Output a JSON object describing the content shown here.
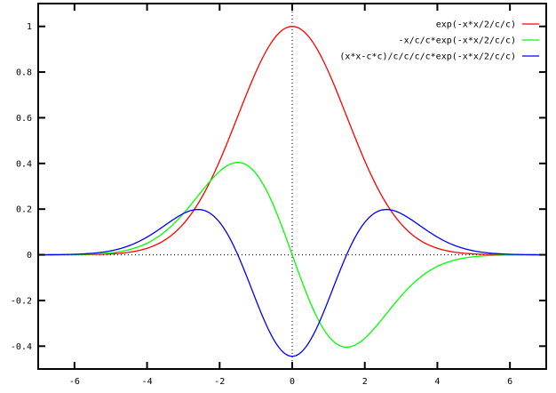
{
  "figure": {
    "background": "#ffffff",
    "border_color": "#000000",
    "text_color": "#000000",
    "zero_axis_color": "#000000"
  },
  "chart_data": {
    "type": "line",
    "title": "",
    "xlabel": "",
    "ylabel": "",
    "xlim": [
      -7,
      7
    ],
    "ylim": [
      -0.5,
      1.1
    ],
    "x_ticks": [
      -6,
      -4,
      -2,
      0,
      2,
      4,
      6
    ],
    "x_tick_labels": [
      "-6",
      "-4",
      "-2",
      "0",
      "2",
      "4",
      "6"
    ],
    "y_ticks": [
      1,
      0.8,
      0.6,
      0.4,
      0.2,
      0,
      -0.2,
      -0.4
    ],
    "y_tick_labels": [
      "1",
      "0.8",
      "0.6",
      "0.4",
      "0.2",
      "0",
      "-0.2",
      "-0.4"
    ],
    "grid": "off",
    "zeroaxis": "dotted-both",
    "legend_position": "top-right",
    "parameter_c": 1.5,
    "sample_step": 0.05,
    "series": [
      {
        "label": "exp(-x*x/2/c/c)",
        "color": "#ff0000",
        "fn": "gauss",
        "semantic": "gaussian",
        "key_points": [
          [
            -6,
            0.0003
          ],
          [
            -4.5,
            0.0111
          ],
          [
            -3,
            0.1353
          ],
          [
            -1.5,
            0.6065
          ],
          [
            0,
            1.0
          ],
          [
            1.5,
            0.6065
          ],
          [
            3,
            0.1353
          ],
          [
            4.5,
            0.0111
          ],
          [
            6,
            0.0003
          ]
        ]
      },
      {
        "label": "-x/c/c*exp(-x*x/2/c/c)",
        "color": "#00ff00",
        "fn": "gauss_d1",
        "semantic": "first-derivative",
        "key_points": [
          [
            -4.5,
            0.0223
          ],
          [
            -3,
            0.1804
          ],
          [
            -1.5,
            0.4044
          ],
          [
            0,
            0
          ],
          [
            1.5,
            -0.4044
          ],
          [
            3,
            -0.1804
          ],
          [
            4.5,
            -0.0223
          ]
        ]
      },
      {
        "label": "(x*x-c*c)/c/c/c/c*exp(-x*x/2/c/c)",
        "color": "#0000ff",
        "fn": "gauss_d2",
        "semantic": "second-derivative",
        "key_points": [
          [
            -4,
            0.0776
          ],
          [
            -2.6,
            0.1983
          ],
          [
            -1.5,
            0
          ],
          [
            0,
            -0.4444
          ],
          [
            1.5,
            0
          ],
          [
            2.6,
            0.1983
          ],
          [
            4,
            0.0776
          ]
        ]
      }
    ]
  }
}
